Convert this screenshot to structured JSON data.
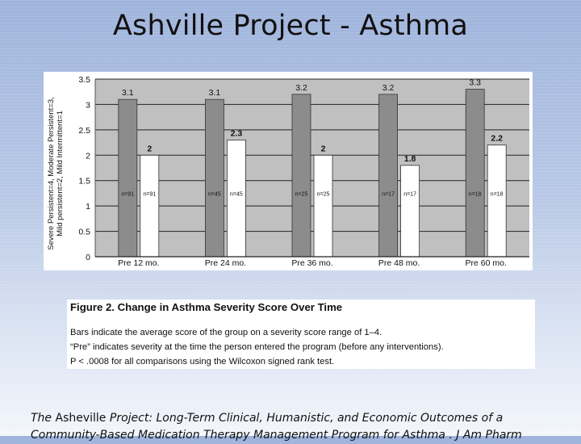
{
  "slide": {
    "title": "Ashville Project - Asthma"
  },
  "chart_data": {
    "type": "bar",
    "title": "",
    "ylabel": "Severe Persistent=4, Moderate Persistent=3,\nMild persistent=2, Mild Intermittent=1",
    "ylabel_line1": "Severe Persistent=4, Moderate Persistent=3,",
    "ylabel_line2": "Mild persistent=2, Mild Intermittent=1",
    "ylim": [
      0,
      3.5
    ],
    "yticks": [
      "0",
      "0.5",
      "1",
      "1.5",
      "2",
      "2.5",
      "3",
      "3.5"
    ],
    "ytick_values": [
      0,
      0.5,
      1,
      1.5,
      2,
      2.5,
      3,
      3.5
    ],
    "grid": true,
    "categories": [
      "Pre 12 mo.",
      "Pre 24 mo.",
      "Pre 36 mo.",
      "Pre 48 mo.",
      "Pre 60 mo."
    ],
    "series": [
      {
        "values": [
          3.1,
          3.1,
          3.2,
          3.2,
          3.3
        ],
        "labels": [
          "3.1",
          "3.1",
          "3.2",
          "3.2",
          "3.3"
        ],
        "n_labels": [
          "n=91",
          "n=45",
          "n=25",
          "n=17",
          "n=18"
        ],
        "color": "#8c8c8c"
      },
      {
        "values": [
          2,
          2.3,
          2,
          1.8,
          2.2
        ],
        "labels": [
          "2",
          "2.3",
          "2",
          "1.8",
          "2.2"
        ],
        "n_labels": [
          "n=91",
          "n=45",
          "n=25",
          "n=17",
          "n=18"
        ],
        "color": "#ffffff"
      }
    ],
    "plot_bg": "#c0c0c0"
  },
  "caption": {
    "figure_title": "Figure 2. Change in Asthma Severity Score Over Time",
    "note1": "Bars indicate the average score of the group on a severity score range of 1–4.",
    "note2": "“Pre” indicates severity at the time the person entered the program (before any interventions).",
    "note3": "P < .0008 for all comparisons using the Wilcoxon signed rank test."
  },
  "citation": {
    "prefix": "The",
    "source": "Asheville",
    "line1_rest": "Project: Long-Term Clinical, Humanistic, and Economic Outcomes of a",
    "line2": "Community-Based Medication Therapy Management Program for Asthma . J Am Pharm"
  }
}
